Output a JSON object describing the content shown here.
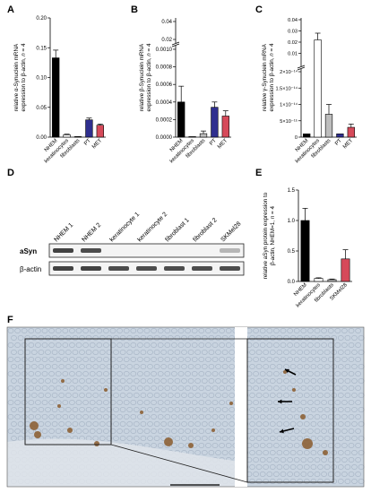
{
  "panels": {
    "A": "A",
    "B": "B",
    "C": "C",
    "D": "D",
    "E": "E",
    "F": "F"
  },
  "colors": {
    "NHEM": "#000000",
    "keratinocytes": "#ffffff",
    "fibroblasts": "#bdbdbd",
    "PT": "#2f2f8f",
    "MET": "#d64a5a",
    "SKMel28": "#d64a5a",
    "ihc_background": "#c9d4e0",
    "ihc_stain": "#8a5a2b"
  },
  "chart_data": [
    {
      "panel": "A",
      "type": "bar",
      "categories": [
        "NHEM",
        "keratinocytes",
        "fibroblasts",
        "PT",
        "MET"
      ],
      "values": [
        0.133,
        0.004,
        0.0005,
        0.029,
        0.02
      ],
      "errors": [
        0.013,
        0.001,
        0.0003,
        0.003,
        0.002
      ],
      "ylabel": "relative α-Synuclein mRNA expression to β-actin, n = 4",
      "yticks": [
        "0.00",
        "0.05",
        "0.10",
        "0.15",
        "0.20"
      ],
      "ylim": [
        0,
        0.2
      ]
    },
    {
      "panel": "B",
      "type": "bar",
      "categories": [
        "NHEM",
        "keratinocytes",
        "fibroblasts",
        "PT",
        "MET"
      ],
      "values": [
        0.0004,
        0.0,
        4e-05,
        0.00034,
        0.00024
      ],
      "errors": [
        0.00018,
        0.0,
        3e-05,
        6e-05,
        6e-05
      ],
      "ylabel": "relative β-Synuclein mRNA expression to β-actin, n = 4",
      "yticks": [
        "0.0000",
        "0.0002",
        "0.0004",
        "0.0006",
        "0.0008",
        "0.0010",
        "0.02",
        "0.04"
      ],
      "ylim": [
        0,
        0.04
      ]
    },
    {
      "panel": "C",
      "type": "bar",
      "categories": [
        "NHEM",
        "keratinocytes",
        "fibroblasts",
        "PT",
        "MET"
      ],
      "values": [
        1e-15,
        0.022,
        7e-15,
        1e-15,
        3e-15
      ],
      "errors": [
        0,
        0.006,
        3e-15,
        0,
        1e-15
      ],
      "ylabel": "relative γ-Synuclein mRNA expression to β-actin, n = 4",
      "yticks": [
        "0",
        "5×10⁻¹⁵",
        "1×10⁻¹⁴",
        "1.5×10⁻¹⁴",
        "2×10⁻¹⁴",
        "0.01",
        "0.02",
        "0.03",
        "0.04"
      ],
      "ylim": [
        0,
        0.04
      ]
    },
    {
      "panel": "E",
      "type": "bar",
      "categories": [
        "NHEM",
        "keratinocytes",
        "fibroblasts",
        "SKMel28"
      ],
      "values": [
        1.0,
        0.05,
        0.03,
        0.37
      ],
      "errors": [
        0.2,
        0.01,
        0.01,
        0.15
      ],
      "ylabel": "relative aSyn protein expression to β-actin, NHEM=1, n = 4",
      "yticks": [
        "0.0",
        "0.5",
        "1.0",
        "1.5"
      ],
      "ylim": [
        0,
        1.5
      ]
    }
  ],
  "western": {
    "lanes": [
      "NHEM 1",
      "NHEM 2",
      "keratinocyte 1",
      "keratinocyte 2",
      "fibroblast 1",
      "fibroblast 2",
      "SKMel28"
    ],
    "rows": [
      {
        "label": "aSyn",
        "intensities": [
          0.9,
          0.85,
          0.0,
          0.0,
          0.0,
          0.0,
          0.35
        ]
      },
      {
        "label": "β-actin",
        "intensities": [
          0.9,
          0.9,
          0.85,
          0.85,
          0.85,
          0.85,
          0.85
        ]
      }
    ]
  }
}
